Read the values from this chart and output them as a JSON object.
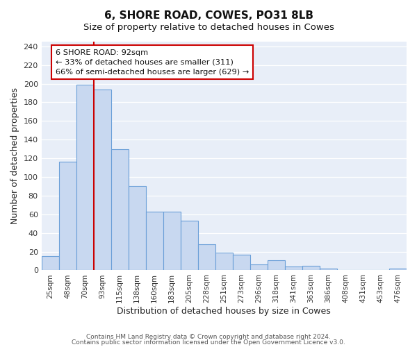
{
  "title": "6, SHORE ROAD, COWES, PO31 8LB",
  "subtitle": "Size of property relative to detached houses in Cowes",
  "xlabel": "Distribution of detached houses by size in Cowes",
  "ylabel": "Number of detached properties",
  "bar_labels": [
    "25sqm",
    "48sqm",
    "70sqm",
    "93sqm",
    "115sqm",
    "138sqm",
    "160sqm",
    "183sqm",
    "205sqm",
    "228sqm",
    "251sqm",
    "273sqm",
    "296sqm",
    "318sqm",
    "341sqm",
    "363sqm",
    "386sqm",
    "408sqm",
    "431sqm",
    "453sqm",
    "476sqm"
  ],
  "bar_heights": [
    15,
    116,
    199,
    194,
    130,
    90,
    63,
    63,
    53,
    28,
    19,
    17,
    6,
    11,
    4,
    5,
    2,
    0,
    0,
    0,
    2
  ],
  "bar_color": "#c8d8f0",
  "bar_edge_color": "#6a9fd8",
  "vline_x_index": 2.5,
  "vline_color": "#cc0000",
  "annotation_line1": "6 SHORE ROAD: 92sqm",
  "annotation_line2": "← 33% of detached houses are smaller (311)",
  "annotation_line3": "66% of semi-detached houses are larger (629) →",
  "annotation_box_color": "#ffffff",
  "annotation_box_edge": "#cc0000",
  "ylim": [
    0,
    245
  ],
  "yticks": [
    0,
    20,
    40,
    60,
    80,
    100,
    120,
    140,
    160,
    180,
    200,
    220,
    240
  ],
  "footer1": "Contains HM Land Registry data © Crown copyright and database right 2024.",
  "footer2": "Contains public sector information licensed under the Open Government Licence v3.0.",
  "fig_bg_color": "#ffffff",
  "plot_bg_color": "#e8eef8",
  "grid_color": "#ffffff",
  "title_fontsize": 11,
  "subtitle_fontsize": 9.5
}
